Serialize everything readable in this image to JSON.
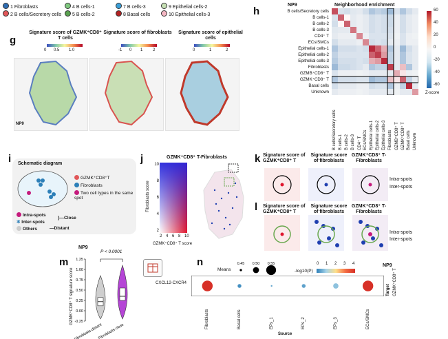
{
  "top_legend": {
    "items": [
      {
        "label": "1 Fibroblasts",
        "color": "#2e6db3"
      },
      {
        "label": "4 B cells-1",
        "color": "#7fc97f"
      },
      {
        "label": "7 B cells-3",
        "color": "#3a9fd8"
      },
      {
        "label": "9 Epithelial cells-2",
        "color": "#c6e0b4"
      },
      {
        "label": "2 B cells/Secretory cells",
        "color": "#e15759"
      },
      {
        "label": "5 B cells-2",
        "color": "#59a14f"
      },
      {
        "label": "8 Basal cells",
        "color": "#b22222"
      },
      {
        "label": "10 Epithelial cells-3",
        "color": "#f4b6c2"
      }
    ]
  },
  "panel_g": {
    "label": "g",
    "sample": "NP9",
    "maps": [
      {
        "title": "Signature score of GZMK⁺CD8⁺ T cells",
        "ticks": [
          "0",
          "0.5",
          "1.0"
        ]
      },
      {
        "title": "Signature score of fibroblasts",
        "ticks": [
          "-1",
          "0",
          "1",
          "2"
        ]
      },
      {
        "title": "Signature score of epithelial cells",
        "ticks": [
          "0",
          "1",
          "2"
        ]
      }
    ]
  },
  "panel_h": {
    "label": "h",
    "sample": "NP9",
    "title": "Neighborhood enrichment",
    "rows": [
      "B cells/Secretory cells",
      "B cells-1",
      "B cells-2",
      "B cells-3",
      "CD4⁺ T",
      "ECs/SMCs",
      "Epithelial cells-1",
      "Epithelial cells-2",
      "Epithelial cells-3",
      "Fibroblasts",
      "GZMB⁺CD8⁺ T",
      "GZMK⁺CD8⁺ T",
      "Basal cells",
      "Unknown"
    ],
    "colorbar_ticks": [
      "60",
      "40",
      "20",
      "0",
      "-20",
      "-40",
      "-60"
    ],
    "colorbar_label": "Z-score"
  },
  "panel_i": {
    "label": "i",
    "title": "Schematic diagram",
    "legend": [
      "GZMK⁺CD8⁺T",
      "Fibroblasts",
      "Two cell types in the same spot"
    ],
    "bottom": [
      "Intra-spots",
      "Inter-spots",
      "Others"
    ],
    "close": "Close",
    "distant": "Distant"
  },
  "panel_j": {
    "label": "j",
    "title": "GZMK⁺CD8⁺ T-Fibroblasts",
    "ylabel": "Fibroblasts score",
    "xlabel": "GZMK⁺CD8⁺ T score",
    "yticks": [
      "10",
      "8",
      "6",
      "4",
      "2"
    ],
    "xticks": [
      "2",
      "4",
      "6",
      "8",
      "10"
    ]
  },
  "panel_k": {
    "label": "k",
    "titles": [
      "Signature score of GZMK⁺CD8⁺ T",
      "Signature score of fibroblasts",
      "GZMK⁺CD8⁺ T-Fibroblasts"
    ],
    "annotations": [
      "Intra-spots",
      "Inter-spots"
    ]
  },
  "panel_l": {
    "label": "l",
    "titles": [
      "Signature score of GZMK⁺CD8⁺ T",
      "Signature score of fibroblasts",
      "GZMK⁺CD8⁺ T-Fibroblasts"
    ],
    "annotations": [
      "Intra-spots",
      "Inter-spots"
    ]
  },
  "panel_m": {
    "label": "m",
    "sample": "NP9",
    "pvalue": "P < 0.0001",
    "ylabel": "GZMK⁺CD8⁺ T signature score",
    "yticks": [
      "1.25",
      "1.00",
      "0.75",
      "0.50",
      "0.25",
      "0.00",
      "-0.25"
    ],
    "groups": [
      "Fibroblasts-distant",
      "Fibroblasts-close"
    ]
  },
  "panel_n": {
    "label": "n",
    "sample": "NP9",
    "means_label": "Means",
    "means_values": [
      "0.45",
      "0.50",
      "0.55"
    ],
    "logp_label": "-log10(P)",
    "logp_ticks": [
      "0",
      "1",
      "2",
      "3",
      "4"
    ],
    "pair": "CXCL12-CXCR4",
    "target_label": "Target",
    "target": "GZMK⁺CD8⁺ T",
    "source_label": "Source",
    "sources": [
      "Fibroblasts",
      "Basal cells",
      "EPs_1",
      "EPs_2",
      "EPs_3",
      "ECs/SMCs"
    ]
  },
  "chart_data": [
    {
      "type": "heatmap",
      "title": "Neighborhood enrichment",
      "rows": [
        "B cells/Secretory cells",
        "B cells-1",
        "B cells-2",
        "B cells-3",
        "CD4⁺ T",
        "ECs/SMCs",
        "Epithelial cells-1",
        "Epithelial cells-2",
        "Epithelial cells-3",
        "Fibroblasts",
        "GZMB⁺CD8⁺ T",
        "GZMK⁺CD8⁺ T",
        "Basal cells",
        "Unknown"
      ],
      "values": [
        [
          45,
          -8,
          -10,
          -6,
          -5,
          -10,
          -20,
          -15,
          -18,
          -25,
          -8,
          -20,
          -10,
          -5
        ],
        [
          -8,
          40,
          0,
          -5,
          -3,
          -5,
          -10,
          -8,
          -10,
          -12,
          -3,
          -10,
          -5,
          -3
        ],
        [
          -10,
          0,
          40,
          -5,
          -3,
          -5,
          -10,
          -8,
          -10,
          -12,
          -3,
          -10,
          -5,
          -3
        ],
        [
          -6,
          -5,
          -5,
          35,
          -3,
          -5,
          -10,
          -8,
          -10,
          -10,
          -3,
          -10,
          -5,
          -3
        ],
        [
          -5,
          -3,
          -3,
          -3,
          30,
          -3,
          -8,
          -8,
          -8,
          -8,
          -2,
          -8,
          -3,
          -2
        ],
        [
          -10,
          -5,
          -5,
          -5,
          -3,
          30,
          -10,
          -8,
          -10,
          -5,
          -3,
          -8,
          -3,
          -3
        ],
        [
          -20,
          -10,
          -10,
          -10,
          -8,
          -10,
          55,
          40,
          20,
          -20,
          -5,
          -25,
          -10,
          -5
        ],
        [
          -15,
          -8,
          -8,
          -8,
          -8,
          -8,
          40,
          50,
          25,
          -15,
          -5,
          -20,
          -8,
          -5
        ],
        [
          -18,
          -10,
          -10,
          -10,
          -8,
          -10,
          20,
          25,
          55,
          -15,
          -5,
          -20,
          -8,
          -5
        ],
        [
          -25,
          -12,
          -12,
          -10,
          -8,
          -5,
          -20,
          -15,
          -15,
          50,
          -5,
          15,
          -20,
          -5
        ],
        [
          -8,
          -3,
          -3,
          -3,
          -2,
          -3,
          -5,
          -5,
          -5,
          -5,
          20,
          5,
          -3,
          -2
        ],
        [
          -20,
          -10,
          -10,
          -10,
          -8,
          -8,
          -25,
          -20,
          -20,
          15,
          5,
          40,
          -15,
          -5
        ],
        [
          -10,
          -5,
          -5,
          -5,
          -3,
          -3,
          -10,
          -8,
          -8,
          -20,
          -3,
          -15,
          55,
          -5
        ],
        [
          -5,
          -3,
          -3,
          -3,
          -2,
          -3,
          -5,
          -5,
          -5,
          -5,
          -2,
          -5,
          -5,
          25
        ]
      ],
      "zlim": [
        -60,
        60
      ]
    },
    {
      "type": "box",
      "title": "GZMK⁺CD8⁺ T signature score",
      "groups": [
        "Fibroblasts-distant",
        "Fibroblasts-close"
      ],
      "medians": [
        0.22,
        0.35
      ],
      "q1": [
        0.12,
        0.25
      ],
      "q3": [
        0.32,
        0.55
      ],
      "ylim": [
        -0.25,
        1.25
      ]
    },
    {
      "type": "scatter",
      "title": "CXCL12-CXCR4 interactions",
      "x": [
        "Fibroblasts",
        "Basal cells",
        "EPs_1",
        "EPs_2",
        "EPs_3",
        "ECs/SMCs"
      ],
      "means": [
        0.56,
        0.47,
        0.44,
        0.47,
        0.49,
        0.56
      ],
      "neg_log10_p": [
        4.2,
        0.2,
        0.5,
        0.4,
        0.8,
        4.0
      ]
    }
  ]
}
